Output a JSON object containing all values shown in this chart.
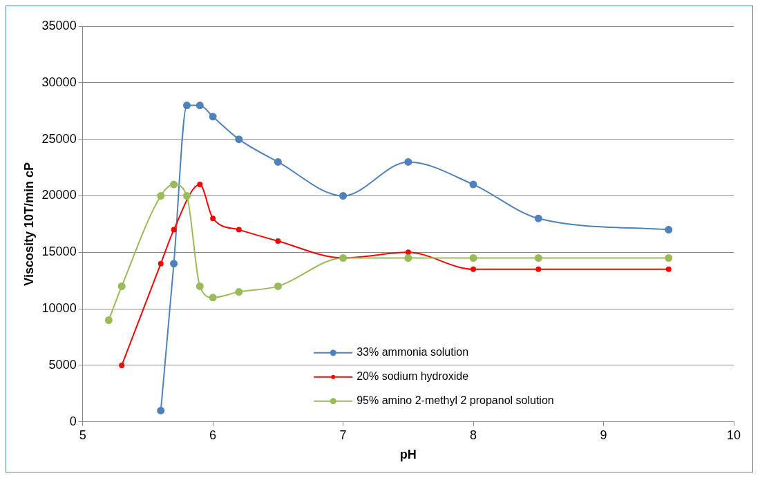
{
  "chart_data": {
    "type": "line",
    "xlabel": "pH",
    "ylabel": "Viscosity 10T/min cP",
    "xlim": [
      5,
      10
    ],
    "xticks": [
      5,
      6,
      7,
      8,
      9,
      10
    ],
    "ylim": [
      0,
      35000
    ],
    "yticks": [
      0,
      5000,
      10000,
      15000,
      20000,
      25000,
      30000,
      35000
    ],
    "grid": "y",
    "legend": "bottom",
    "marker": "circle",
    "line_style": "solid",
    "series": [
      {
        "name": "33% ammonia solution",
        "color": "#4f81bd",
        "x": [
          5.6,
          5.7,
          5.8,
          5.9,
          6.0,
          6.2,
          6.5,
          7.0,
          7.5,
          8.0,
          8.5,
          9.5
        ],
        "values": [
          1000,
          14000,
          28000,
          28000,
          27000,
          25000,
          23000,
          20000,
          23000,
          21000,
          18000,
          17000
        ]
      },
      {
        "name": "20% sodium hydroxide",
        "color": "#ff0000",
        "x": [
          5.3,
          5.6,
          5.7,
          5.9,
          6.0,
          6.2,
          6.5,
          7.0,
          7.5,
          8.0,
          8.5,
          9.5
        ],
        "values": [
          5000,
          14000,
          17000,
          21000,
          18000,
          17000,
          16000,
          14500,
          15000,
          13500,
          13500,
          13500
        ]
      },
      {
        "name": "95% amino 2-methyl 2 propanol solution",
        "color": "#9bbb59",
        "x": [
          5.2,
          5.3,
          5.6,
          5.7,
          5.8,
          5.9,
          6.0,
          6.2,
          6.5,
          7.0,
          7.5,
          8.0,
          8.5,
          9.5
        ],
        "values": [
          9000,
          12000,
          20000,
          21000,
          20000,
          12000,
          11000,
          11500,
          12000,
          14500,
          14500,
          14500,
          14500,
          14500
        ]
      }
    ]
  }
}
